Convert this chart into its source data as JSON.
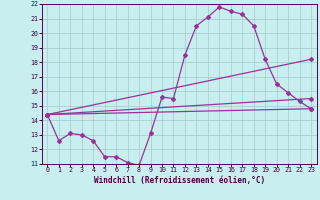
{
  "xlabel": "Windchill (Refroidissement éolien,°C)",
  "xlim": [
    -0.5,
    23.5
  ],
  "ylim": [
    11,
    22
  ],
  "xticks": [
    0,
    1,
    2,
    3,
    4,
    5,
    6,
    7,
    8,
    9,
    10,
    11,
    12,
    13,
    14,
    15,
    16,
    17,
    18,
    19,
    20,
    21,
    22,
    23
  ],
  "yticks": [
    11,
    12,
    13,
    14,
    15,
    16,
    17,
    18,
    19,
    20,
    21,
    22
  ],
  "bg_color": "#c8eef0",
  "grid_color": "#a0ccc8",
  "line_color": "#993399",
  "line1": {
    "x": [
      0,
      1,
      2,
      3,
      4,
      5,
      6,
      7,
      8,
      9,
      10,
      11,
      12,
      13,
      14,
      15,
      16,
      17,
      18,
      19,
      20,
      21,
      22,
      23
    ],
    "y": [
      14.4,
      12.6,
      13.1,
      13.0,
      12.6,
      11.5,
      11.5,
      11.1,
      10.9,
      13.1,
      15.6,
      15.5,
      18.5,
      20.5,
      21.1,
      21.8,
      21.5,
      21.3,
      20.5,
      18.2,
      16.5,
      15.9,
      15.3,
      14.8
    ]
  },
  "line2": {
    "x": [
      0,
      23
    ],
    "y": [
      14.4,
      14.8
    ]
  },
  "line3": {
    "x": [
      0,
      23
    ],
    "y": [
      14.4,
      15.5
    ]
  },
  "line4": {
    "x": [
      0,
      23
    ],
    "y": [
      14.4,
      18.2
    ]
  }
}
